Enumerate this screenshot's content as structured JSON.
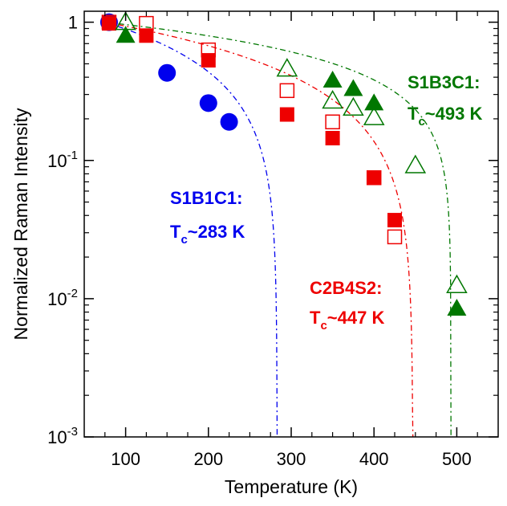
{
  "chart_data": {
    "type": "scatter",
    "xlabel": "Temperature (K)",
    "ylabel": "Normalized Raman Intensity",
    "xlim": [
      50,
      550
    ],
    "ylim": [
      0.001,
      1.2
    ],
    "y_scale": "log",
    "x_ticks": [
      100,
      200,
      300,
      400,
      500
    ],
    "y_ticks": [
      {
        "value": 1,
        "base": "1",
        "exp": ""
      },
      {
        "value": 0.1,
        "base": "10",
        "exp": "-1"
      },
      {
        "value": 0.01,
        "base": "10",
        "exp": "-2"
      },
      {
        "value": 0.001,
        "base": "10",
        "exp": "-3"
      }
    ],
    "grid": false,
    "series": [
      {
        "key": "s1b1c1",
        "color": "#0000ee",
        "marker": "circle-filled",
        "points": [
          [
            80,
            1.0
          ],
          [
            150,
            0.43
          ],
          [
            200,
            0.26
          ],
          [
            225,
            0.19
          ]
        ],
        "fit": {
          "tc": 283,
          "beta": 0.45,
          "tstart": 75
        }
      },
      {
        "key": "c2b4s2",
        "color": "#ee0000",
        "marker": "square-filled",
        "points": [
          [
            80,
            0.98
          ],
          [
            125,
            0.8
          ],
          [
            200,
            0.53
          ],
          [
            295,
            0.215
          ],
          [
            350,
            0.145
          ],
          [
            400,
            0.075
          ],
          [
            425,
            0.037
          ]
        ],
        "fit": {
          "tc": 447,
          "beta": 0.48,
          "tstart": 75
        }
      },
      {
        "key": "c2b4s2-open",
        "color": "#ee0000",
        "marker": "square-open",
        "points": [
          [
            80,
            1.0
          ],
          [
            125,
            0.98
          ],
          [
            200,
            0.63
          ],
          [
            295,
            0.32
          ],
          [
            350,
            0.19
          ],
          [
            400,
            0.075
          ],
          [
            425,
            0.028
          ]
        ],
        "fit": null
      },
      {
        "key": "s1b3c1",
        "color": "#007700",
        "marker": "triangle-filled",
        "points": [
          [
            100,
            0.8
          ],
          [
            350,
            0.38
          ],
          [
            375,
            0.33
          ],
          [
            400,
            0.26
          ],
          [
            500,
            0.0085
          ]
        ],
        "fit": {
          "tc": 493,
          "beta": 0.32,
          "tstart": 75
        }
      },
      {
        "key": "s1b3c1-open",
        "color": "#007700",
        "marker": "triangle-open",
        "points": [
          [
            100,
            1.0
          ],
          [
            295,
            0.46
          ],
          [
            350,
            0.27
          ],
          [
            375,
            0.24
          ],
          [
            400,
            0.205
          ],
          [
            450,
            0.092
          ],
          [
            500,
            0.0125
          ]
        ],
        "fit": null
      }
    ],
    "annotations": [
      {
        "key": "s1b1c1",
        "name": "S1B1C1:",
        "tc_prefix": "T",
        "tc_sub": "c",
        "tc_value": "~283 K",
        "color": "#0000ee"
      },
      {
        "key": "c2b4s2",
        "name": "C2B4S2:",
        "tc_prefix": "T",
        "tc_sub": "c",
        "tc_value": "~447 K",
        "color": "#ee0000"
      },
      {
        "key": "s1b3c1",
        "name": "S1B3C1:",
        "tc_prefix": "T",
        "tc_sub": "c",
        "tc_value": "~493 K",
        "color": "#007700"
      }
    ]
  }
}
